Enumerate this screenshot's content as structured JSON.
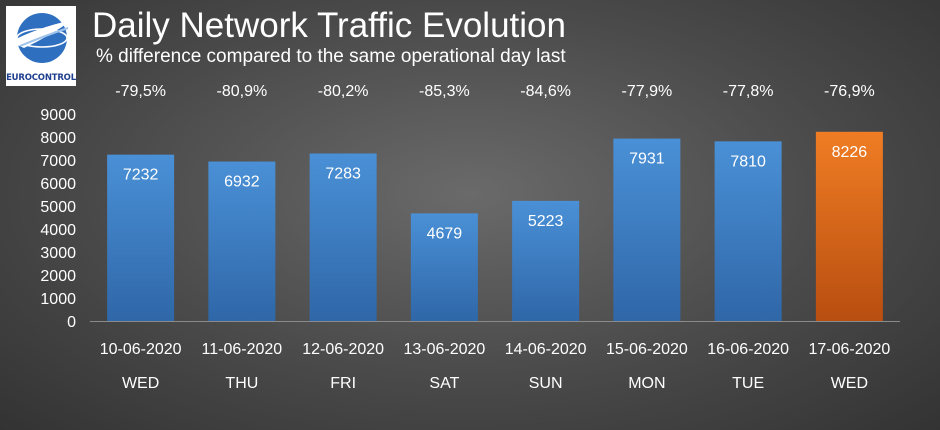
{
  "header": {
    "title": "Daily Network Traffic Evolution",
    "subtitle": "% difference compared to the same operational day last",
    "logo_text": "EUROCONTROL"
  },
  "colors": {
    "bar": "#3c7fc4",
    "bar_highlight": "#e8731e",
    "axis_text": "#ffffff",
    "gridline": "#8a8a8a"
  },
  "chart_data": {
    "type": "bar",
    "title": "Daily Network Traffic Evolution",
    "subtitle": "% difference compared to the same operational day last",
    "xlabel": "",
    "ylabel": "",
    "ylim": [
      0,
      9000
    ],
    "yticks": [
      0,
      1000,
      2000,
      3000,
      4000,
      5000,
      6000,
      7000,
      8000,
      9000
    ],
    "grid": false,
    "categories": [
      "10-06-2020",
      "11-06-2020",
      "12-06-2020",
      "13-06-2020",
      "14-06-2020",
      "15-06-2020",
      "16-06-2020",
      "17-06-2020"
    ],
    "weekdays": [
      "WED",
      "THU",
      "FRI",
      "SAT",
      "SUN",
      "MON",
      "TUE",
      "WED"
    ],
    "values": [
      7232,
      6932,
      7283,
      4679,
      5223,
      7931,
      7810,
      8226
    ],
    "pct_diff": [
      "-79,5%",
      "-80,9%",
      "-80,2%",
      "-85,3%",
      "-84,6%",
      "-77,9%",
      "-77,8%",
      "-76,9%"
    ],
    "highlight_index": 7
  }
}
